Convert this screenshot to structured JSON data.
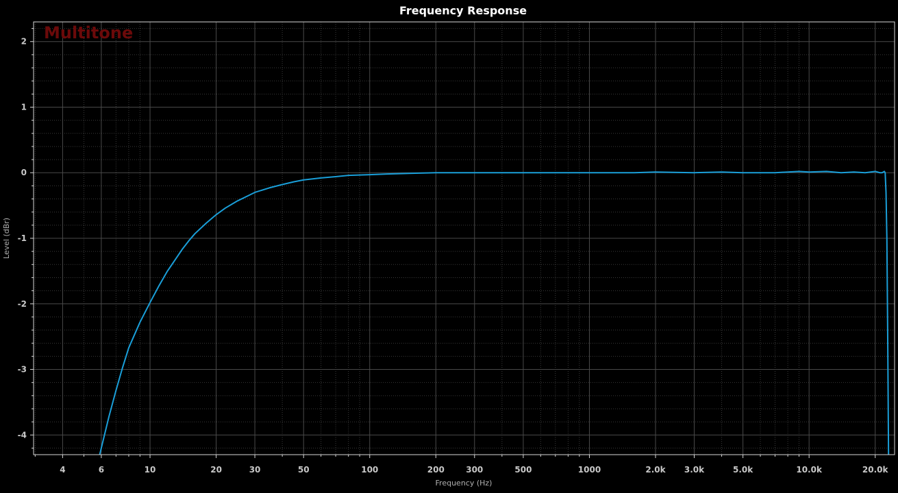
{
  "chart_data": {
    "type": "line",
    "title": "Frequency Response",
    "watermark": "Multitone",
    "xlabel": "Frequency (Hz)",
    "ylabel": "Level (dBr)",
    "x_scale": "log",
    "xlim": [
      2.95,
      24500
    ],
    "ylim": [
      -4.3,
      2.3
    ],
    "grid": true,
    "line_color": "#1a9fd9",
    "background": "#000000",
    "x_ticks": [
      {
        "value": 4,
        "label": "4"
      },
      {
        "value": 6,
        "label": "6"
      },
      {
        "value": 10,
        "label": "10"
      },
      {
        "value": 20,
        "label": "20"
      },
      {
        "value": 30,
        "label": "30"
      },
      {
        "value": 50,
        "label": "50"
      },
      {
        "value": 100,
        "label": "100"
      },
      {
        "value": 200,
        "label": "200"
      },
      {
        "value": 300,
        "label": "300"
      },
      {
        "value": 500,
        "label": "500"
      },
      {
        "value": 1000,
        "label": "1000"
      },
      {
        "value": 2000,
        "label": "2.0k"
      },
      {
        "value": 3000,
        "label": "3.0k"
      },
      {
        "value": 5000,
        "label": "5.0k"
      },
      {
        "value": 10000,
        "label": "10.0k"
      },
      {
        "value": 20000,
        "label": "20.0k"
      }
    ],
    "y_ticks": [
      {
        "value": 2,
        "label": "2"
      },
      {
        "value": 1,
        "label": "1"
      },
      {
        "value": 0,
        "label": "0"
      },
      {
        "value": -1,
        "label": "-1"
      },
      {
        "value": -2,
        "label": "-2"
      },
      {
        "value": -3,
        "label": "-3"
      },
      {
        "value": -4,
        "label": "-4"
      }
    ],
    "series": [
      {
        "x": [
          5.9,
          6.5,
          7,
          7.5,
          8,
          9,
          10,
          11,
          12,
          13,
          14,
          15,
          16,
          18,
          20,
          22,
          25,
          28,
          30,
          35,
          40,
          45,
          50,
          60,
          70,
          80,
          100,
          120,
          150,
          200,
          300,
          500,
          1000,
          1600,
          2000,
          3000,
          4000,
          5000,
          7000,
          9000,
          10000,
          12000,
          14000,
          16000,
          18000,
          20000,
          21000,
          21500,
          22000,
          22200,
          22400,
          22600,
          22800,
          23000
        ],
        "y": [
          -4.3,
          -3.72,
          -3.32,
          -2.97,
          -2.67,
          -2.28,
          -1.98,
          -1.72,
          -1.5,
          -1.33,
          -1.17,
          -1.04,
          -0.93,
          -0.77,
          -0.64,
          -0.54,
          -0.43,
          -0.35,
          -0.3,
          -0.23,
          -0.18,
          -0.14,
          -0.11,
          -0.08,
          -0.06,
          -0.04,
          -0.03,
          -0.02,
          -0.01,
          0.0,
          0.0,
          0.0,
          0.0,
          0.0,
          0.01,
          0.0,
          0.01,
          0.0,
          0.0,
          0.02,
          0.01,
          0.02,
          0.0,
          0.01,
          0.0,
          0.02,
          0.0,
          0.0,
          0.02,
          0.0,
          -0.3,
          -1.0,
          -2.5,
          -4.3
        ]
      }
    ]
  }
}
